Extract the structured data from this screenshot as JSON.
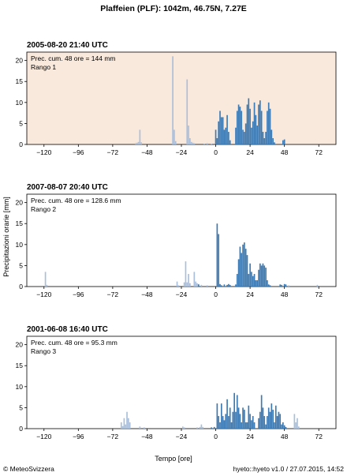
{
  "title": "Plaffeien (PLF): 1042m, 46.75N, 7.27E",
  "ylabel": "Precipitazioni orarie [mm]",
  "xlabel": "Tempo [ore]",
  "footer_left": "© MeteoSvizzera",
  "footer_right": "hyeto::hyeto v1.0 / 27.07.2015, 14:52",
  "colors": {
    "highlight_bg": "#f9e9dc",
    "bar_dark": "#3d7ab3",
    "bar_light": "#a9bfdc",
    "axis": "#000000"
  },
  "chart_data": [
    {
      "type": "bar",
      "title": "2005-08-20 21:40 UTC",
      "annotation_1": "Prec. cum. 48 ore = 144 mm",
      "annotation_2": "Rango 1",
      "highlighted": true,
      "xlim": [
        -132,
        84
      ],
      "ylim": [
        0,
        22
      ],
      "xticks": [
        -120,
        -96,
        -72,
        -48,
        -24,
        0,
        24,
        48,
        72
      ],
      "yticks": [
        0,
        5,
        10,
        15,
        20
      ],
      "light": [
        [
          -56,
          0.3
        ],
        [
          -55,
          0.4
        ],
        [
          -54,
          0.6
        ],
        [
          -53,
          3.5
        ],
        [
          -52,
          0.5
        ],
        [
          -30,
          21
        ],
        [
          -29,
          3.5
        ],
        [
          -28,
          0.8
        ],
        [
          -20,
          15.5
        ],
        [
          -19,
          4.5
        ],
        [
          -18,
          1.5
        ],
        [
          -17,
          0.6
        ],
        [
          -16,
          0.4
        ],
        [
          -15,
          0.3
        ],
        [
          -8,
          0.2
        ],
        [
          -6,
          0.3
        ],
        [
          -3,
          0.2
        ],
        [
          48,
          0.4
        ]
      ],
      "dark": [
        [
          0,
          3.5
        ],
        [
          1,
          1.5
        ],
        [
          2,
          5.5
        ],
        [
          3,
          8
        ],
        [
          4,
          6.5
        ],
        [
          5,
          6.5
        ],
        [
          6,
          3.5
        ],
        [
          7,
          4
        ],
        [
          8,
          7
        ],
        [
          9,
          3
        ],
        [
          10,
          1
        ],
        [
          14,
          4
        ],
        [
          15,
          8
        ],
        [
          16,
          9.5
        ],
        [
          17,
          9
        ],
        [
          18,
          8
        ],
        [
          19,
          3.5
        ],
        [
          20,
          3
        ],
        [
          21,
          5
        ],
        [
          22,
          9.5
        ],
        [
          23,
          11
        ],
        [
          24,
          8.5
        ],
        [
          25,
          4
        ],
        [
          26,
          5.5
        ],
        [
          27,
          10
        ],
        [
          28,
          7
        ],
        [
          29,
          4.5
        ],
        [
          30,
          9.5
        ],
        [
          31,
          10.5
        ],
        [
          32,
          8
        ],
        [
          33,
          3
        ],
        [
          34,
          1.5
        ],
        [
          35,
          3
        ],
        [
          36,
          8
        ],
        [
          37,
          10
        ],
        [
          38,
          8.5
        ],
        [
          39,
          3.5
        ],
        [
          40,
          1.5
        ],
        [
          41,
          0.5
        ],
        [
          47,
          1
        ],
        [
          48,
          1.2
        ]
      ]
    },
    {
      "type": "bar",
      "title": "2007-08-07 20:40 UTC",
      "annotation_1": "Prec. cum. 48 ore = 128.6 mm",
      "annotation_2": "Rango 2",
      "highlighted": false,
      "xlim": [
        -132,
        84
      ],
      "ylim": [
        0,
        22
      ],
      "xticks": [
        -120,
        -96,
        -72,
        -48,
        -24,
        0,
        24,
        48,
        72
      ],
      "yticks": [
        0,
        5,
        10,
        15,
        20
      ],
      "light": [
        [
          -119,
          3.5
        ],
        [
          -118,
          0.4
        ],
        [
          -27,
          1.2
        ],
        [
          -26,
          0.3
        ],
        [
          -22,
          1
        ],
        [
          -21,
          6
        ],
        [
          -20,
          1
        ],
        [
          -19,
          3
        ],
        [
          -18,
          0.8
        ],
        [
          -15,
          3.5
        ],
        [
          -14,
          1.2
        ],
        [
          -13,
          0.8
        ],
        [
          -12,
          0.6
        ],
        [
          -10,
          0.4
        ],
        [
          -6,
          0.3
        ],
        [
          51,
          0.3
        ],
        [
          71,
          0.4
        ]
      ],
      "dark": [
        [
          -12,
          0.5
        ],
        [
          1,
          15
        ],
        [
          2,
          12.5
        ],
        [
          3,
          0.6
        ],
        [
          4,
          0.3
        ],
        [
          6,
          0.5
        ],
        [
          8,
          0.4
        ],
        [
          9,
          0.6
        ],
        [
          10,
          0.4
        ],
        [
          14,
          0.5
        ],
        [
          15,
          3
        ],
        [
          16,
          6.5
        ],
        [
          17,
          9.5
        ],
        [
          18,
          8
        ],
        [
          19,
          10
        ],
        [
          20,
          10.5
        ],
        [
          21,
          9
        ],
        [
          22,
          7.5
        ],
        [
          23,
          3
        ],
        [
          24,
          5.5
        ],
        [
          25,
          3.5
        ],
        [
          26,
          2.5
        ],
        [
          27,
          3
        ],
        [
          28,
          1.5
        ],
        [
          29,
          1.5
        ],
        [
          30,
          4
        ],
        [
          31,
          5.5
        ],
        [
          32,
          5
        ],
        [
          33,
          5.5
        ],
        [
          34,
          5
        ],
        [
          35,
          4.5
        ],
        [
          36,
          1.5
        ],
        [
          37,
          0.5
        ],
        [
          38,
          0.3
        ],
        [
          45,
          0.5
        ],
        [
          46,
          0.4
        ],
        [
          48,
          0.6
        ],
        [
          49,
          0.5
        ]
      ]
    },
    {
      "type": "bar",
      "title": "2001-06-08 16:40 UTC",
      "annotation_1": "Prec. cum. 48 ore = 95.3 mm",
      "annotation_2": "Rango 3",
      "highlighted": false,
      "xlim": [
        -132,
        84
      ],
      "ylim": [
        0,
        22
      ],
      "xticks": [
        -120,
        -96,
        -72,
        -48,
        -24,
        0,
        24,
        48,
        72
      ],
      "yticks": [
        0,
        5,
        10,
        15,
        20
      ],
      "light": [
        [
          -66,
          1.5
        ],
        [
          -65,
          0.6
        ],
        [
          -64,
          2.5
        ],
        [
          -63,
          1
        ],
        [
          -62,
          4
        ],
        [
          -61,
          2.5
        ],
        [
          -60,
          1.5
        ],
        [
          -53,
          0.5
        ],
        [
          -50,
          0.3
        ],
        [
          -23,
          0.5
        ],
        [
          -22,
          0.3
        ],
        [
          -13,
          0.3
        ],
        [
          -11,
          0.4
        ],
        [
          -10,
          1
        ],
        [
          -9,
          0.4
        ],
        [
          55,
          3.5
        ],
        [
          56,
          1.5
        ],
        [
          57,
          2.5
        ],
        [
          58,
          0.5
        ]
      ],
      "dark": [
        [
          -3,
          0.3
        ],
        [
          -1,
          0.4
        ],
        [
          1,
          6
        ],
        [
          2,
          3
        ],
        [
          3,
          1.5
        ],
        [
          4,
          6
        ],
        [
          5,
          3
        ],
        [
          6,
          2
        ],
        [
          7,
          3.5
        ],
        [
          8,
          7
        ],
        [
          9,
          3
        ],
        [
          10,
          5
        ],
        [
          11,
          1.5
        ],
        [
          12,
          4
        ],
        [
          13,
          8.5
        ],
        [
          14,
          4
        ],
        [
          15,
          8
        ],
        [
          16,
          5
        ],
        [
          17,
          3.5
        ],
        [
          18,
          1.5
        ],
        [
          19,
          5
        ],
        [
          20,
          4.5
        ],
        [
          21,
          1.5
        ],
        [
          22,
          1.5
        ],
        [
          23,
          5.5
        ],
        [
          24,
          3.5
        ],
        [
          25,
          2
        ],
        [
          26,
          3
        ],
        [
          27,
          1.5
        ],
        [
          30,
          2.5
        ],
        [
          31,
          4
        ],
        [
          32,
          8
        ],
        [
          33,
          5
        ],
        [
          34,
          3
        ],
        [
          35,
          1
        ],
        [
          36,
          3
        ],
        [
          37,
          5
        ],
        [
          38,
          4
        ],
        [
          39,
          6
        ],
        [
          40,
          4.5
        ],
        [
          41,
          1.5
        ],
        [
          42,
          5.5
        ],
        [
          43,
          3
        ],
        [
          44,
          4
        ],
        [
          45,
          3.5
        ],
        [
          46,
          1
        ],
        [
          47,
          1.5
        ],
        [
          48,
          0.8
        ],
        [
          49,
          0.4
        ]
      ]
    }
  ]
}
